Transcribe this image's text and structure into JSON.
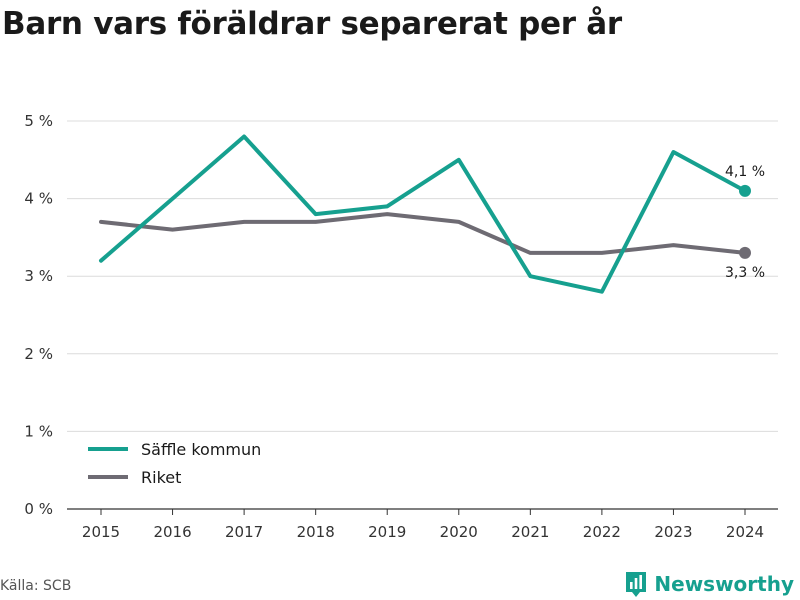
{
  "header": {
    "title": "Barn vars föräldrar separerat per år"
  },
  "footer": {
    "source": "Källa: SCB",
    "brand": "Newsworthy"
  },
  "colors": {
    "accent": "#16a08f",
    "secondary": "#6e6b73",
    "grid": "#dcdcdc"
  },
  "chart_data": {
    "type": "line",
    "x": [
      "2015",
      "2016",
      "2017",
      "2018",
      "2019",
      "2020",
      "2021",
      "2022",
      "2023",
      "2024"
    ],
    "ylim": [
      0,
      5
    ],
    "yticks": [
      0,
      1,
      2,
      3,
      4,
      5
    ],
    "ytick_labels": [
      "0 %",
      "1 %",
      "2 %",
      "3 %",
      "4 %",
      "5 %"
    ],
    "grid": true,
    "legend_position": "bottom-left",
    "series": [
      {
        "name": "Säffle kommun",
        "color": "#16a08f",
        "values": [
          3.2,
          4.0,
          4.8,
          3.8,
          3.9,
          4.5,
          3.0,
          2.8,
          4.6,
          4.1
        ],
        "end_label": "4,1 %"
      },
      {
        "name": "Riket",
        "color": "#6e6b73",
        "values": [
          3.7,
          3.6,
          3.7,
          3.7,
          3.8,
          3.7,
          3.3,
          3.3,
          3.4,
          3.3
        ],
        "end_label": "3,3 %"
      }
    ]
  }
}
